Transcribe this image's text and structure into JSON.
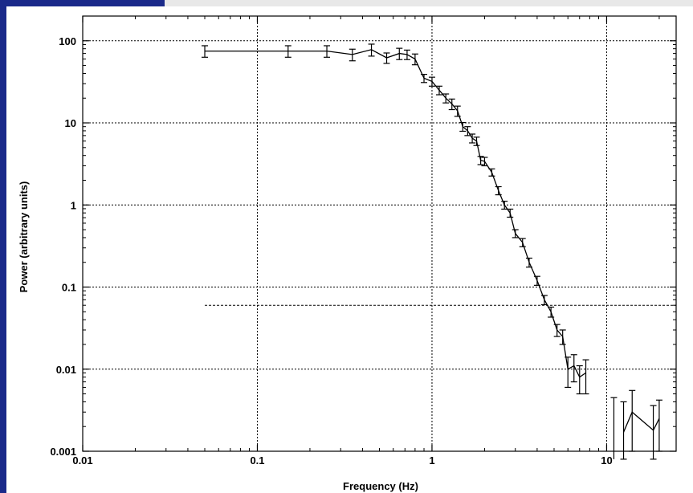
{
  "chart_data": {
    "type": "line",
    "xlabel": "Frequency (Hz)",
    "ylabel": "Power (arbitrary units)",
    "x_scale": "log",
    "y_scale": "log",
    "xlim": [
      0.01,
      25
    ],
    "ylim": [
      0.001,
      200
    ],
    "grid": true,
    "x_ticks": [
      0.01,
      0.1,
      1,
      10
    ],
    "x_tick_labels": [
      "0.01",
      "0.1",
      "1",
      "10"
    ],
    "y_ticks": [
      0.001,
      0.01,
      0.1,
      1,
      10,
      100
    ],
    "y_tick_labels": [
      "0.001",
      "0.01",
      "0.1",
      "1",
      "10",
      "100"
    ],
    "reference_line": {
      "y": 0.06,
      "x_start": 0.05,
      "x_end": 25
    },
    "series": [
      {
        "x": [
          0.05,
          0.15,
          0.25,
          0.35,
          0.45,
          0.55,
          0.65,
          0.72,
          0.8,
          0.9,
          1.0,
          1.1,
          1.2,
          1.3,
          1.4,
          1.5,
          1.6,
          1.7,
          1.8,
          1.9,
          2.0,
          2.2,
          2.4,
          2.6,
          2.8,
          3.0,
          3.3,
          3.6,
          4.0,
          4.4,
          4.8,
          5.2,
          5.6,
          6.0,
          6.5,
          7.0,
          7.6
        ],
        "y": [
          75,
          75,
          75,
          68,
          78,
          62,
          70,
          68,
          60,
          35,
          32,
          25,
          20,
          17,
          14,
          9,
          8,
          6.5,
          6,
          3.5,
          3.4,
          2.5,
          1.5,
          1.0,
          0.8,
          0.45,
          0.35,
          0.2,
          0.12,
          0.07,
          0.05,
          0.03,
          0.025,
          0.01,
          0.011,
          0.008,
          0.009
        ],
        "err_low": [
          63,
          63,
          63,
          57,
          65,
          53,
          59,
          59,
          51,
          31,
          28,
          22,
          17.5,
          14.5,
          12,
          7.9,
          7,
          5.7,
          5.3,
          3.1,
          3.0,
          2.25,
          1.33,
          0.89,
          0.71,
          0.4,
          0.31,
          0.175,
          0.105,
          0.061,
          0.043,
          0.025,
          0.02,
          0.006,
          0.007,
          0.005,
          0.005
        ],
        "err_high": [
          87,
          87,
          87,
          79,
          91,
          71,
          81,
          77,
          69,
          39,
          36,
          28,
          22.5,
          19.5,
          16,
          10.1,
          9,
          7.3,
          6.7,
          3.9,
          3.8,
          2.75,
          1.67,
          1.11,
          0.89,
          0.5,
          0.39,
          0.225,
          0.135,
          0.079,
          0.057,
          0.035,
          0.03,
          0.014,
          0.015,
          0.011,
          0.013
        ]
      },
      {
        "x": [
          12.5,
          14,
          18.5,
          20
        ],
        "y": [
          0.0017,
          0.003,
          0.0018,
          0.0025
        ],
        "err_low": [
          0.0008,
          0.001,
          0.0008,
          0.001
        ],
        "err_high": [
          0.004,
          0.0055,
          0.0036,
          0.0042
        ]
      }
    ],
    "lone_errorbars": [
      {
        "x": 11,
        "low": 0.0008,
        "high": 0.0045
      }
    ]
  }
}
